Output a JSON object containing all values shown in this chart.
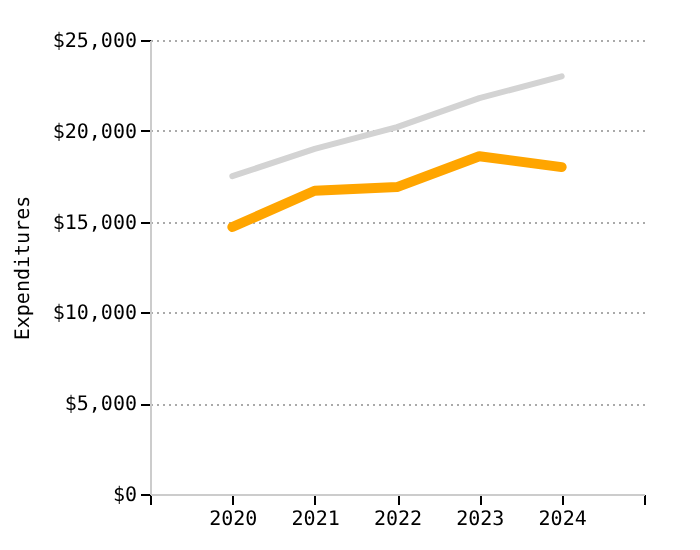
{
  "chart_data": {
    "type": "line",
    "ylabel": "Expenditures",
    "x": [
      2020,
      2021,
      2022,
      2023,
      2024
    ],
    "series": [
      {
        "color": "#d3d3d3",
        "values": [
          17500,
          19000,
          20200,
          21800,
          23000
        ]
      },
      {
        "color": "#ffa500",
        "values": [
          14700,
          16700,
          16900,
          18600,
          18000
        ]
      }
    ],
    "xlim": [
      2019,
      2025
    ],
    "xticks": [
      {
        "value": 2019,
        "label": null
      },
      2020,
      2021,
      2022,
      2023,
      2024,
      {
        "value": 2025,
        "label": null
      }
    ],
    "ylim": [
      0,
      25000
    ],
    "yticks": [
      {
        "value": 0,
        "label": "$0"
      },
      {
        "value": 5000,
        "label": "$5,000"
      },
      {
        "value": 10000,
        "label": "$10,000"
      },
      {
        "value": 15000,
        "label": "$15,000"
      },
      {
        "value": 20000,
        "label": "$20,000"
      },
      {
        "value": 25000,
        "label": "$25,000"
      }
    ],
    "grid": "y",
    "marker": "none",
    "line_style": "solid"
  }
}
